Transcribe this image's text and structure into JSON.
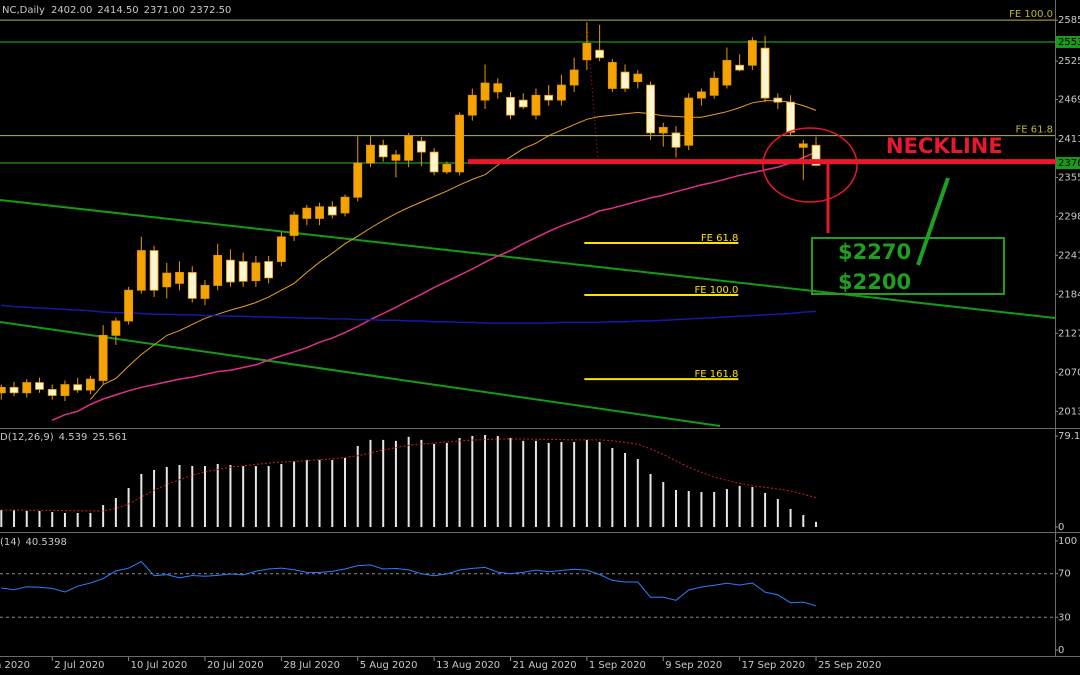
{
  "chart_data": [
    {
      "type": "candlestick",
      "title": "NC,Daily",
      "header_values": [
        {
          "value": 2402,
          "label": "2402.00"
        },
        {
          "value": 2414.5,
          "label": "2414.50"
        },
        {
          "value": 2371,
          "label": "2371.00"
        },
        {
          "value": 2372.5,
          "label": "2372.50"
        }
      ],
      "categories": [
        null,
        null,
        null,
        null,
        "2 Jul 2020",
        null,
        null,
        null,
        null,
        null,
        "10 Jul 2020",
        null,
        null,
        null,
        null,
        null,
        "20 Jul 2020",
        null,
        null,
        null,
        null,
        null,
        "28 Jul 2020",
        null,
        null,
        null,
        null,
        null,
        "5 Aug 2020",
        null,
        null,
        null,
        null,
        null,
        "13 Aug 2020",
        null,
        null,
        null,
        null,
        null,
        "21 Aug 2020",
        null,
        null,
        null,
        null,
        null,
        "1 Sep 2020",
        null,
        null,
        null,
        null,
        null,
        "9 Sep 2020",
        null,
        null,
        null,
        null,
        null,
        "17 Sep 2020",
        null,
        null,
        null,
        null,
        null,
        "25 Sep 2020"
      ],
      "x_edge_label": "n 2020",
      "open": [
        2040,
        2048,
        2040,
        2055,
        2045,
        2036,
        2052,
        2044,
        2058,
        2124,
        2145,
        2190,
        2248,
        2195,
        2200,
        2216,
        2178,
        2197,
        2234,
        2232,
        2204,
        2232,
        2232,
        2270,
        2295,
        2295,
        2312,
        2303,
        2326,
        2376,
        2402,
        2380,
        2380,
        2408,
        2392,
        2363,
        2363,
        2446,
        2468,
        2480,
        2472,
        2468,
        2446,
        2475,
        2468,
        2490,
        2527,
        2541,
        2485,
        2509,
        2495,
        2490,
        2420,
        2420,
        2402,
        2471,
        2475,
        2490,
        2519,
        2519,
        2544,
        2471,
        2465,
        2399,
        2402
      ],
      "high": [
        2052,
        2056,
        2060,
        2062,
        2052,
        2058,
        2062,
        2065,
        2139,
        2150,
        2195,
        2268,
        2255,
        2230,
        2232,
        2225,
        2205,
        2258,
        2250,
        2245,
        2240,
        2240,
        2275,
        2305,
        2315,
        2318,
        2320,
        2330,
        2415,
        2415,
        2410,
        2395,
        2420,
        2414,
        2398,
        2378,
        2450,
        2485,
        2520,
        2500,
        2480,
        2478,
        2485,
        2490,
        2505,
        2530,
        2582,
        2578,
        2528,
        2520,
        2512,
        2495,
        2435,
        2430,
        2478,
        2485,
        2510,
        2545,
        2535,
        2560,
        2562,
        2478,
        2475,
        2410,
        2414.5
      ],
      "low": [
        2030,
        2035,
        2033,
        2040,
        2030,
        2028,
        2040,
        2038,
        2052,
        2110,
        2140,
        2185,
        2180,
        2178,
        2190,
        2172,
        2168,
        2190,
        2195,
        2195,
        2195,
        2200,
        2225,
        2262,
        2285,
        2285,
        2295,
        2298,
        2320,
        2370,
        2378,
        2355,
        2370,
        2372,
        2358,
        2360,
        2358,
        2438,
        2455,
        2470,
        2440,
        2455,
        2440,
        2460,
        2460,
        2480,
        2512,
        2525,
        2480,
        2480,
        2485,
        2410,
        2400,
        2384,
        2395,
        2460,
        2470,
        2485,
        2510,
        2512,
        2465,
        2455,
        2415,
        2351,
        2371
      ],
      "close": [
        2048,
        2040,
        2055,
        2045,
        2036,
        2052,
        2044,
        2060,
        2124,
        2145,
        2190,
        2248,
        2190,
        2215,
        2216,
        2178,
        2197,
        2241,
        2202,
        2203,
        2230,
        2208,
        2268,
        2300,
        2310,
        2312,
        2300,
        2326,
        2376,
        2402,
        2385,
        2388,
        2416,
        2392,
        2363,
        2374,
        2446,
        2475,
        2493,
        2492,
        2446,
        2458,
        2475,
        2468,
        2490,
        2512,
        2551,
        2530,
        2523,
        2485,
        2506,
        2420,
        2428,
        2399,
        2471,
        2480,
        2500,
        2526,
        2512,
        2555,
        2471,
        2465,
        2421,
        2404,
        2372.5
      ],
      "up_color": "#f5a300",
      "down_color": "#fff6d0",
      "wick_color": "#e89a00",
      "moving_averages": [
        {
          "color": "#e8a020",
          "values": [
            null,
            null,
            null,
            null,
            null,
            null,
            null,
            2030,
            2052,
            2061,
            2079,
            2096,
            2110,
            2124,
            2131,
            2140,
            2149,
            2155,
            2161,
            2166,
            2172,
            2180,
            2190,
            2200,
            2216,
            2231,
            2244,
            2258,
            2269,
            2281,
            2292,
            2302,
            2311,
            2319,
            2327,
            2335,
            2344,
            2352,
            2359,
            2373,
            2385,
            2397,
            2405,
            2416,
            2424,
            2432,
            2440,
            2444,
            2446,
            2448,
            2450,
            2448,
            2445,
            2444,
            2443,
            2443,
            2447,
            2451,
            2457,
            2464,
            2467,
            2467,
            2465,
            2460,
            2453
          ]
        },
        {
          "color": "#e0308a",
          "values": [
            null,
            null,
            null,
            null,
            2000,
            2008,
            2013,
            2023,
            2031,
            2037,
            2043,
            2048,
            2052,
            2056,
            2060,
            2063,
            2067,
            2071,
            2073,
            2077,
            2081,
            2088,
            2094,
            2100,
            2106,
            2114,
            2120,
            2128,
            2137,
            2147,
            2156,
            2165,
            2175,
            2184,
            2194,
            2203,
            2212,
            2221,
            2231,
            2240,
            2248,
            2258,
            2267,
            2276,
            2284,
            2291,
            2298,
            2306,
            2310,
            2315,
            2320,
            2325,
            2329,
            2334,
            2339,
            2344,
            2348,
            2353,
            2358,
            2362,
            2366,
            2370,
            2376,
            2384,
            2392
          ]
        },
        {
          "color": "#1818a8",
          "values": [
            2168,
            2166,
            2165,
            2164,
            2163,
            2162,
            2161,
            2160,
            2158,
            2157,
            2157,
            2156,
            2155,
            2155,
            2154,
            2154,
            2153,
            2153,
            2152,
            2152,
            2151,
            2151,
            2150,
            2150,
            2149,
            2149,
            2148,
            2148,
            2147,
            2147,
            2146,
            2146,
            2145,
            2145,
            2144,
            2144,
            2143,
            2143,
            2142,
            2142,
            2142,
            2142,
            2142,
            2142,
            2143,
            2143,
            2143,
            2143,
            2144,
            2144,
            2145,
            2145,
            2146,
            2147,
            2148,
            2149,
            2150,
            2151,
            2152,
            2153,
            2154,
            2155,
            2156,
            2158,
            2159
          ]
        }
      ],
      "ylim": [
        1990,
        2610
      ],
      "yticks": [
        2585,
        2525,
        2469,
        2411,
        2355,
        2298,
        2241,
        2184,
        2127,
        2070,
        2013
      ],
      "price_levels": [
        2553,
        2376
      ],
      "price_level_color": "#1a9a1a",
      "fe_levels": [
        {
          "name": "FE 100.0",
          "value": 2585
        },
        {
          "name": "FE 61.8",
          "value": 2416
        }
      ],
      "fe_level_color": "#b8b840",
      "fe_targets": [
        {
          "name": "FE 61.8",
          "value": 2259
        },
        {
          "name": "FE 100.0",
          "value": 2183
        },
        {
          "name": "FE 161.8",
          "value": 2060
        }
      ],
      "fe_target_color": "#ffe000",
      "neckline": {
        "label": "NECKLINE",
        "value": 2378,
        "color": "#e8192c"
      },
      "targets": [
        "$2270",
        "$2200"
      ]
    },
    {
      "type": "macd",
      "title": "D(12,26,9)",
      "series": [
        {
          "color": "#e6e6e6",
          "values": [
            14.8,
            14.8,
            13.9,
            13.9,
            13.0,
            12.2,
            12.2,
            12.2,
            19.1,
            25.2,
            33.9,
            46.1,
            49.6,
            52.2,
            53.9,
            53.0,
            53.0,
            54.8,
            53.9,
            53.0,
            53.0,
            53.0,
            54.8,
            57.4,
            58.3,
            58.3,
            58.3,
            60.0,
            70.4,
            75.7,
            75.7,
            74.8,
            78.3,
            75.7,
            72.2,
            73.0,
            77.4,
            79.1,
            80.0,
            79.1,
            77.4,
            74.8,
            74.8,
            73.0,
            73.9,
            73.9,
            75.7,
            73.9,
            68.7,
            64.3,
            59.1,
            46.1,
            39.1,
            32.2,
            31.3,
            30.4,
            30.4,
            33.0,
            35.7,
            34.8,
            29.6,
            24.3,
            15.7,
            10.4,
            4.539
          ]
        },
        {
          "color": "#d02020",
          "values": [
            14.8,
            14.7,
            14.6,
            14.5,
            14.4,
            14.3,
            14.1,
            14.0,
            13.9,
            16,
            20,
            26,
            32,
            37,
            41,
            45,
            48,
            50,
            52,
            53,
            54.5,
            55.5,
            56.5,
            57,
            57.6,
            58.5,
            59.3,
            60.5,
            62,
            64.5,
            67,
            69,
            71,
            72,
            73,
            74,
            74.8,
            75.5,
            76,
            76.5,
            76.5,
            76.5,
            76.3,
            76.1,
            76,
            75.8,
            75.7,
            75.7,
            75,
            73.5,
            72,
            68,
            63,
            57.5,
            52,
            47.5,
            43.5,
            40.5,
            38,
            36,
            34.5,
            33,
            31.3,
            28.5,
            25.561
          ]
        }
      ],
      "ylim": [
        -2.6,
        84.3
      ],
      "yticks": [
        79.1,
        0
      ]
    },
    {
      "type": "line",
      "title": "(14)",
      "series": [
        {
          "color": "#2a7fff",
          "values": [
            56.9,
            55.2,
            58,
            57.6,
            56.5,
            53.2,
            58.5,
            61.5,
            65.5,
            72.6,
            75,
            81.2,
            68.2,
            69.2,
            66.1,
            68.3,
            67.6,
            68.4,
            69.7,
            68.9,
            72.2,
            74.3,
            75.1,
            73.6,
            71.2,
            71.1,
            72.2,
            74.3,
            77.4,
            78,
            74.3,
            74.8,
            73.6,
            69.9,
            68.2,
            69.8,
            73.4,
            74.9,
            75.8,
            71.5,
            69.9,
            71.3,
            73.3,
            71.7,
            72.9,
            74.1,
            73.3,
            69.3,
            63.8,
            62.4,
            62.4,
            48.4,
            48.5,
            45.6,
            55,
            57.8,
            59.4,
            61.3,
            59.6,
            61.5,
            53.1,
            50.5,
            43.4,
            43.9,
            40.5398
          ]
        }
      ],
      "ylim": [
        -4.6,
        105.5
      ],
      "yticks": [
        100,
        70,
        30,
        0
      ],
      "levels": [
        70,
        30
      ]
    }
  ]
}
